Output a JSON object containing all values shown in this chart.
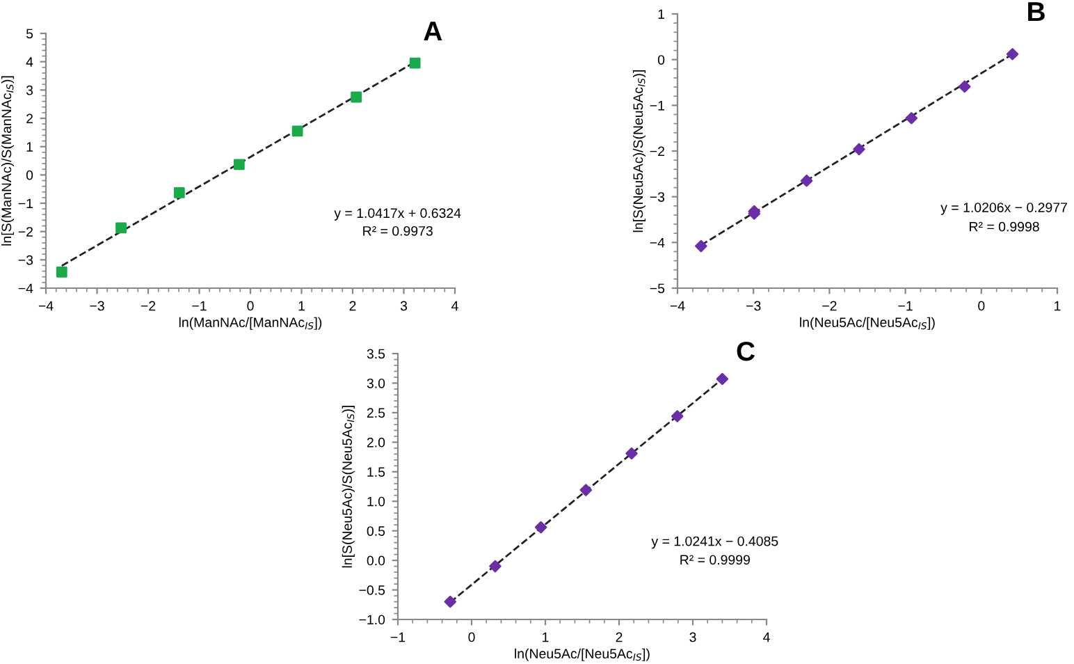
{
  "chart_data": [
    {
      "type": "scatter",
      "title": "A",
      "xlabel": "ln(ManNAc/[ManNAc$_{IS}$])",
      "ylabel": "ln[S(ManNAc)/S(ManNAc$_{IS}$)]",
      "xlim": [
        -4,
        4
      ],
      "xticks": [
        -4,
        -3,
        -2,
        -1,
        0,
        1,
        2,
        3,
        4
      ],
      "ylim": [
        -4,
        5
      ],
      "yticks": [
        -4,
        -3,
        -2,
        -1,
        0,
        1,
        2,
        3,
        4,
        5
      ],
      "grid": false,
      "legend": false,
      "marker": "square",
      "annotations": [
        "y = 1.0417x + 0.6324",
        "R² = 0.9973"
      ],
      "series": [
        {
          "color": "#1aaa4a",
          "x": [
            -3.69,
            -2.53,
            -1.39,
            -0.22,
            0.92,
            2.07,
            3.22
          ],
          "values": [
            -3.43,
            -1.87,
            -0.63,
            0.37,
            1.55,
            2.75,
            3.95
          ]
        },
        {
          "type": "line",
          "color": "#222222",
          "line_style": "dashed",
          "marker": "none",
          "x": [
            -3.69,
            3.22
          ],
          "values": [
            -3.21,
            3.99
          ]
        }
      ]
    },
    {
      "type": "scatter",
      "title": "B",
      "xlabel": "ln(Neu5Ac/[Neu5Ac$_{IS}$])",
      "ylabel": "ln[S(Neu5Ac)/S(Neu5Ac$_{IS}$)]",
      "xlim": [
        -4,
        1
      ],
      "xticks": [
        -4,
        -3,
        -2,
        -1,
        0,
        1
      ],
      "ylim": [
        -5,
        1
      ],
      "yticks": [
        -5,
        -4,
        -3,
        -2,
        -1,
        0,
        1
      ],
      "grid": false,
      "legend": false,
      "marker": "diamond",
      "annotations": [
        "y = 1.0206x − 0.2977",
        "R² = 0.9998"
      ],
      "series": [
        {
          "color": "#6a2fa8",
          "x": [
            -3.69,
            -2.99,
            -2.99,
            -2.3,
            -1.61,
            -0.92,
            -0.22,
            0.41
          ],
          "values": [
            -4.08,
            -3.32,
            -3.37,
            -2.65,
            -1.96,
            -1.28,
            -0.59,
            0.12
          ]
        },
        {
          "type": "line",
          "color": "#222222",
          "line_style": "dashed",
          "marker": "none",
          "x": [
            -3.69,
            0.41
          ],
          "values": [
            -4.06,
            0.12
          ]
        }
      ]
    },
    {
      "type": "scatter",
      "title": "C",
      "xlabel": "ln(Neu5Ac/[Neu5Ac$_{IS}$])",
      "ylabel": "ln[S(Neu5Ac)/S(Neu5Ac$_{IS}$)]",
      "xlim": [
        -1,
        4
      ],
      "xticks": [
        -1,
        0,
        1,
        2,
        3,
        4
      ],
      "ylim": [
        -1.0,
        3.5
      ],
      "yticks": [
        {
          "value": -1.0,
          "label": "−1.0"
        },
        {
          "value": -0.5,
          "label": "−0.5"
        },
        {
          "value": 0.0,
          "label": "0.0"
        },
        {
          "value": 0.5,
          "label": "0.5"
        },
        {
          "value": 1.0,
          "label": "1.0"
        },
        {
          "value": 1.5,
          "label": "1.5"
        },
        {
          "value": 2.0,
          "label": "2.0"
        },
        {
          "value": 2.5,
          "label": "2.5"
        },
        {
          "value": 3.0,
          "label": "3.0"
        },
        {
          "value": 3.5,
          "label": "3.5"
        }
      ],
      "grid": false,
      "legend": false,
      "marker": "diamond",
      "annotations": [
        "y = 1.0241x − 0.4085",
        "R² = 0.9999"
      ],
      "series": [
        {
          "color": "#6a2fa8",
          "x": [
            -0.29,
            0.32,
            0.94,
            1.55,
            2.17,
            2.79,
            3.4
          ],
          "values": [
            -0.7,
            -0.1,
            0.56,
            1.19,
            1.81,
            2.44,
            3.07
          ]
        },
        {
          "type": "line",
          "color": "#222222",
          "line_style": "dashed",
          "marker": "none",
          "x": [
            -0.29,
            3.4
          ],
          "values": [
            -0.71,
            3.07
          ]
        }
      ]
    }
  ]
}
